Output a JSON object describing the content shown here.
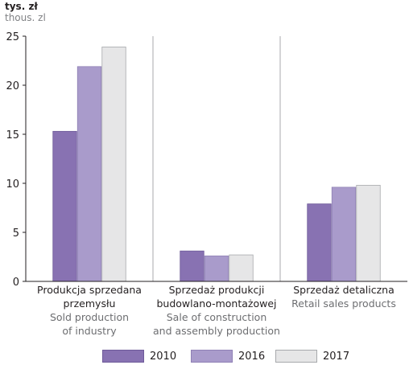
{
  "chart_data": {
    "type": "bar",
    "unit_label_pl": "tys. zł",
    "unit_label_en": "thous. zl",
    "y_ticks": [
      "0",
      "5",
      "10",
      "15",
      "20",
      "25"
    ],
    "ylim": [
      0,
      25
    ],
    "grid": false,
    "legend_position": "bottom",
    "categories": [
      {
        "pl": [
          "Produkcja sprzedana",
          "przemysłu"
        ],
        "en": [
          "Sold production",
          "of industry"
        ]
      },
      {
        "pl": [
          "Sprzedaż produkcji",
          "budowlano-montażowej"
        ],
        "en": [
          "Sale of construction",
          "and assembly production"
        ]
      },
      {
        "pl": [
          "Sprzedaż detaliczna"
        ],
        "en": [
          "Retail sales products"
        ]
      }
    ],
    "series": [
      {
        "name": "2010",
        "color": "#8872b2",
        "stroke": "#6e5a99",
        "values": [
          15.3,
          3.1,
          7.9
        ]
      },
      {
        "name": "2016",
        "color": "#a99bcb",
        "stroke": "#8f80b5",
        "values": [
          21.9,
          2.6,
          9.6
        ]
      },
      {
        "name": "2017",
        "color": "#e6e6e7",
        "stroke": "#a7a9ac",
        "values": [
          23.9,
          2.7,
          9.8
        ]
      }
    ]
  }
}
